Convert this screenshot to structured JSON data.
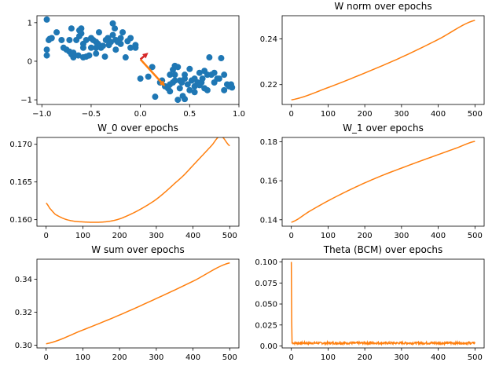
{
  "colors": {
    "line": "#ff7f0e",
    "scatter": "#1f77b4",
    "arrow_orange": "#ff7f0e",
    "arrow_red": "#d62728",
    "axes": "#000000",
    "background": "#ffffff"
  },
  "chart_data": [
    {
      "id": "scatter",
      "type": "scatter",
      "title": "",
      "xlim": [
        -1.05,
        1.0
      ],
      "ylim": [
        -1.12,
        1.18
      ],
      "xticks": [
        -1.0,
        -0.5,
        0.0,
        0.5,
        1.0
      ],
      "xtick_labels": [
        "−1.0",
        "−0.5",
        "0.0",
        "0.5",
        "1.0"
      ],
      "yticks": [
        -1,
        0,
        1
      ],
      "ytick_labels": [
        "−1",
        "0",
        "1"
      ],
      "points": [
        [
          -0.95,
          1.08
        ],
        [
          -0.93,
          0.55
        ],
        [
          -0.9,
          0.6
        ],
        [
          -0.95,
          0.3
        ],
        [
          -0.92,
          0.58
        ],
        [
          -0.95,
          0.15
        ],
        [
          -0.8,
          0.55
        ],
        [
          -0.75,
          0.3
        ],
        [
          -0.72,
          0.25
        ],
        [
          -0.7,
          0.18
        ],
        [
          -0.68,
          0.1
        ],
        [
          -0.72,
          0.55
        ],
        [
          -0.65,
          0.55
        ],
        [
          -0.63,
          0.15
        ],
        [
          -0.6,
          0.85
        ],
        [
          -0.62,
          0.8
        ],
        [
          -0.6,
          0.72
        ],
        [
          -0.58,
          0.45
        ],
        [
          -0.58,
          0.1
        ],
        [
          -0.55,
          0.12
        ],
        [
          -0.52,
          0.15
        ],
        [
          -0.5,
          0.35
        ],
        [
          -0.48,
          0.55
        ],
        [
          -0.45,
          0.5
        ],
        [
          -0.43,
          0.45
        ],
        [
          -0.42,
          0.75
        ],
        [
          -0.4,
          0.35
        ],
        [
          -0.38,
          0.4
        ],
        [
          -0.36,
          0.12
        ],
        [
          -0.33,
          0.6
        ],
        [
          -0.32,
          0.42
        ],
        [
          -0.3,
          0.5
        ],
        [
          -0.28,
          0.98
        ],
        [
          -0.26,
          0.85
        ],
        [
          -0.25,
          0.55
        ],
        [
          -0.23,
          0.5
        ],
        [
          -0.2,
          0.45
        ],
        [
          -0.18,
          0.75
        ],
        [
          -0.15,
          0.1
        ],
        [
          -0.13,
          0.52
        ],
        [
          -0.1,
          0.6
        ],
        [
          -0.05,
          0.42
        ],
        [
          -0.05,
          0.35
        ],
        [
          -0.7,
          0.85
        ],
        [
          -0.62,
          0.65
        ],
        [
          -0.78,
          0.35
        ],
        [
          -0.58,
          0.35
        ],
        [
          -0.35,
          0.55
        ],
        [
          -0.45,
          0.2
        ],
        [
          -0.25,
          0.3
        ],
        [
          -0.85,
          0.75
        ],
        [
          -0.5,
          0.6
        ],
        [
          -0.45,
          0.35
        ],
        [
          -0.28,
          0.68
        ],
        [
          -0.55,
          0.55
        ],
        [
          -0.68,
          0.22
        ],
        [
          -0.2,
          0.6
        ],
        [
          -0.1,
          0.35
        ],
        [
          0.0,
          -0.45
        ],
        [
          0.08,
          -0.4
        ],
        [
          0.12,
          -0.15
        ],
        [
          0.15,
          -0.92
        ],
        [
          0.2,
          -0.55
        ],
        [
          0.22,
          -0.5
        ],
        [
          0.25,
          -0.65
        ],
        [
          0.28,
          -0.7
        ],
        [
          0.3,
          -0.35
        ],
        [
          0.3,
          -0.6
        ],
        [
          0.33,
          -0.22
        ],
        [
          0.33,
          -0.55
        ],
        [
          0.35,
          -0.5
        ],
        [
          0.35,
          -0.35
        ],
        [
          0.38,
          -0.15
        ],
        [
          0.38,
          -1.0
        ],
        [
          0.4,
          -0.5
        ],
        [
          0.4,
          -0.7
        ],
        [
          0.42,
          -0.55
        ],
        [
          0.43,
          -0.9
        ],
        [
          0.45,
          -0.35
        ],
        [
          0.45,
          -0.45
        ],
        [
          0.48,
          -0.6
        ],
        [
          0.5,
          -0.2
        ],
        [
          0.5,
          -0.75
        ],
        [
          0.52,
          -0.5
        ],
        [
          0.55,
          -0.8
        ],
        [
          0.55,
          -0.45
        ],
        [
          0.58,
          -0.55
        ],
        [
          0.6,
          -0.3
        ],
        [
          0.62,
          -0.55
        ],
        [
          0.63,
          -0.45
        ],
        [
          0.65,
          -0.25
        ],
        [
          0.68,
          -0.35
        ],
        [
          0.68,
          -0.75
        ],
        [
          0.7,
          0.1
        ],
        [
          0.72,
          -0.35
        ],
        [
          0.75,
          -0.3
        ],
        [
          0.75,
          -0.55
        ],
        [
          0.78,
          -0.45
        ],
        [
          0.8,
          -0.45
        ],
        [
          0.82,
          0.08
        ],
        [
          0.85,
          -0.75
        ],
        [
          0.85,
          -0.35
        ],
        [
          0.88,
          -0.6
        ],
        [
          0.9,
          -0.65
        ],
        [
          0.92,
          -0.6
        ],
        [
          0.93,
          -0.68
        ],
        [
          0.3,
          -0.78
        ],
        [
          0.45,
          -0.98
        ],
        [
          0.35,
          -0.12
        ],
        [
          0.55,
          -0.65
        ],
        [
          0.6,
          -0.62
        ],
        [
          0.65,
          -0.7
        ]
      ],
      "arrows": [
        {
          "color": "arrow_orange",
          "from": [
            0.0,
            0.05
          ],
          "to": [
            0.25,
            -0.65
          ]
        },
        {
          "color": "arrow_red",
          "from": [
            0.0,
            0.05
          ],
          "to": [
            0.08,
            0.22
          ]
        }
      ]
    },
    {
      "id": "w_norm",
      "type": "line",
      "title": "W norm over epochs",
      "xlim": [
        -25,
        525
      ],
      "ylim": [
        0.2113,
        0.2502
      ],
      "xticks": [
        0,
        100,
        200,
        300,
        400,
        500
      ],
      "xtick_labels": [
        "0",
        "100",
        "200",
        "300",
        "400",
        "500"
      ],
      "yticks": [
        0.22,
        0.24
      ],
      "ytick_labels": [
        "0.22",
        "0.24"
      ],
      "x": [
        0,
        100,
        200,
        300,
        400,
        500
      ],
      "y": [
        0.2133,
        0.2187,
        0.2251,
        0.232,
        0.2398,
        0.2482
      ]
    },
    {
      "id": "w_0",
      "type": "line",
      "title": "W_0 over epochs",
      "xlim": [
        -25,
        525
      ],
      "ylim": [
        0.15913,
        0.17091
      ],
      "xticks": [
        0,
        100,
        200,
        300,
        400,
        500
      ],
      "xtick_labels": [
        "0",
        "100",
        "200",
        "300",
        "400",
        "500"
      ],
      "yticks": [
        0.16,
        0.165,
        0.17
      ],
      "ytick_labels": [
        "0.160",
        "0.165",
        "0.170"
      ],
      "x": [
        0,
        10,
        25,
        50,
        75,
        100,
        125,
        150,
        175,
        200,
        225,
        250,
        275,
        300,
        325,
        350,
        375,
        400,
        425,
        450,
        475,
        500
      ],
      "y": [
        0.1622,
        0.1615,
        0.1607,
        0.1601,
        0.1598,
        0.1597,
        0.15965,
        0.15967,
        0.1598,
        0.1601,
        0.1606,
        0.1612,
        0.1619,
        0.1627,
        0.1637,
        0.1648,
        0.1659,
        0.1672,
        0.1685,
        0.1698,
        0.1711,
        0.1698
      ]
    },
    {
      "id": "w_1",
      "type": "line",
      "title": "W_1 over epochs",
      "xlim": [
        -25,
        525
      ],
      "ylim": [
        0.1367,
        0.1822
      ],
      "xticks": [
        0,
        100,
        200,
        300,
        400,
        500
      ],
      "xtick_labels": [
        "0",
        "100",
        "200",
        "300",
        "400",
        "500"
      ],
      "yticks": [
        0.14,
        0.16,
        0.18
      ],
      "ytick_labels": [
        "0.14",
        "0.16",
        "0.18"
      ],
      "x": [
        0,
        50,
        100,
        150,
        200,
        250,
        300,
        350,
        400,
        450,
        500
      ],
      "y": [
        0.1387,
        0.1444,
        0.1497,
        0.1545,
        0.1589,
        0.1629,
        0.1665,
        0.17,
        0.1734,
        0.1768,
        0.1802
      ]
    },
    {
      "id": "w_sum",
      "type": "line",
      "title": "W sum over epochs",
      "xlim": [
        -25,
        525
      ],
      "ylim": [
        0.2983,
        0.3522
      ],
      "xticks": [
        0,
        100,
        200,
        300,
        400,
        500
      ],
      "xtick_labels": [
        "0",
        "100",
        "200",
        "300",
        "400",
        "500"
      ],
      "yticks": [
        0.3,
        0.32,
        0.34
      ],
      "ytick_labels": [
        "0.30",
        "0.32",
        "0.34"
      ],
      "x": [
        0,
        100,
        200,
        300,
        400,
        500
      ],
      "y": [
        0.3008,
        0.3092,
        0.3183,
        0.3283,
        0.3388,
        0.35
      ]
    },
    {
      "id": "theta",
      "type": "line",
      "title": "Theta (BCM) over epochs",
      "xlim": [
        -25,
        525
      ],
      "ylim": [
        -0.0023,
        0.1033
      ],
      "xticks": [
        0,
        100,
        200,
        300,
        400,
        500
      ],
      "xtick_labels": [
        "0",
        "100",
        "200",
        "300",
        "400",
        "500"
      ],
      "yticks": [
        0.0,
        0.025,
        0.05,
        0.075,
        0.1
      ],
      "ytick_labels": [
        "0.00",
        "0.025",
        "0.050",
        "0.075",
        "0.100"
      ],
      "x": [
        0,
        1,
        2,
        500
      ],
      "y": [
        0.1,
        0.03,
        0.0035,
        0.0035
      ],
      "noise_level": 0.0035,
      "noise_amplitude": 0.0012
    }
  ]
}
